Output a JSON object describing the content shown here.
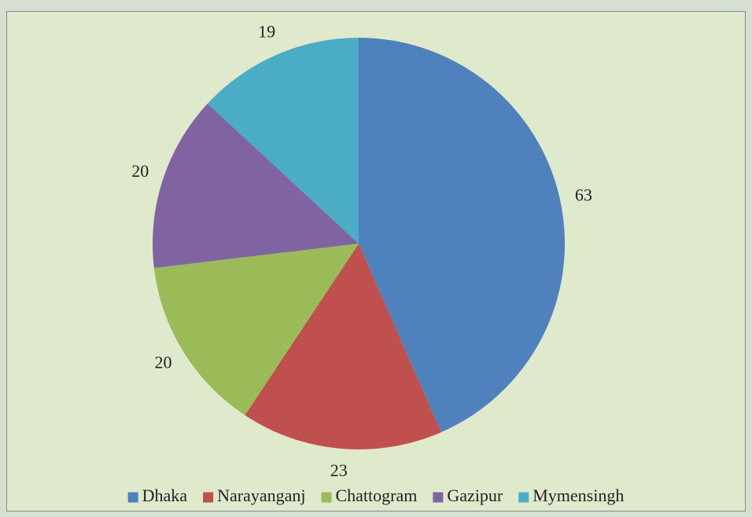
{
  "chart_data": {
    "type": "pie",
    "categories": [
      "Dhaka",
      "Narayanganj",
      "Chattogram",
      "Gazipur",
      "Mymensingh"
    ],
    "values": [
      63,
      23,
      20,
      20,
      19
    ],
    "colors": [
      "#4f81bd",
      "#c0504d",
      "#9bbb59",
      "#8064a2",
      "#4bacc6"
    ],
    "legend": "bottom"
  }
}
